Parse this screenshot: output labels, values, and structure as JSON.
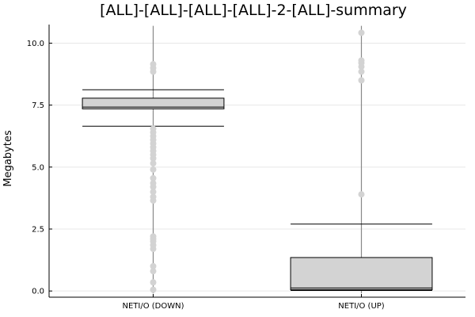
{
  "chart_data": {
    "type": "box",
    "title": "[ALL]-[ALL]-[ALL]-[ALL]-2-[ALL]-summary",
    "xlabel": "",
    "ylabel": "Megabytes",
    "ylim": [
      -0.25,
      10.75
    ],
    "yticks": [
      0.0,
      2.5,
      5.0,
      7.5,
      10.0
    ],
    "ytick_labels": [
      "0.0",
      "2.5",
      "5.0",
      "7.5",
      "10.0"
    ],
    "grid": true,
    "legend": "none",
    "colors": {
      "box_fill": "#d3d3d3",
      "whisker": "#888888",
      "outlier": "#d3d3d3"
    },
    "categories": [
      "NETI/O (DOWN)",
      "NETI/O (UP)"
    ],
    "boxes": [
      {
        "category": "NETI/O (DOWN)",
        "whisker_low": 6.65,
        "q1": 7.35,
        "median": 7.42,
        "q3": 7.78,
        "whisker_high": 8.12,
        "line_min": -0.1,
        "line_max": 10.7,
        "outliers": [
          0.05,
          0.35,
          0.8,
          1.0,
          1.7,
          1.85,
          2.0,
          2.1,
          2.2,
          3.65,
          3.8,
          4.0,
          4.2,
          4.35,
          4.55,
          4.9,
          5.15,
          5.35,
          5.5,
          5.65,
          5.8,
          5.95,
          6.1,
          6.25,
          6.4,
          6.55,
          8.85,
          9.0,
          9.15
        ]
      },
      {
        "category": "NETI/O (UP)",
        "whisker_low": 0.02,
        "q1": 0.05,
        "median": 0.12,
        "q3": 1.35,
        "whisker_high": 2.7,
        "line_min": -0.1,
        "line_max": 10.7,
        "outliers": [
          3.9,
          8.5,
          8.85,
          9.05,
          9.2,
          9.3,
          10.42
        ]
      }
    ]
  }
}
